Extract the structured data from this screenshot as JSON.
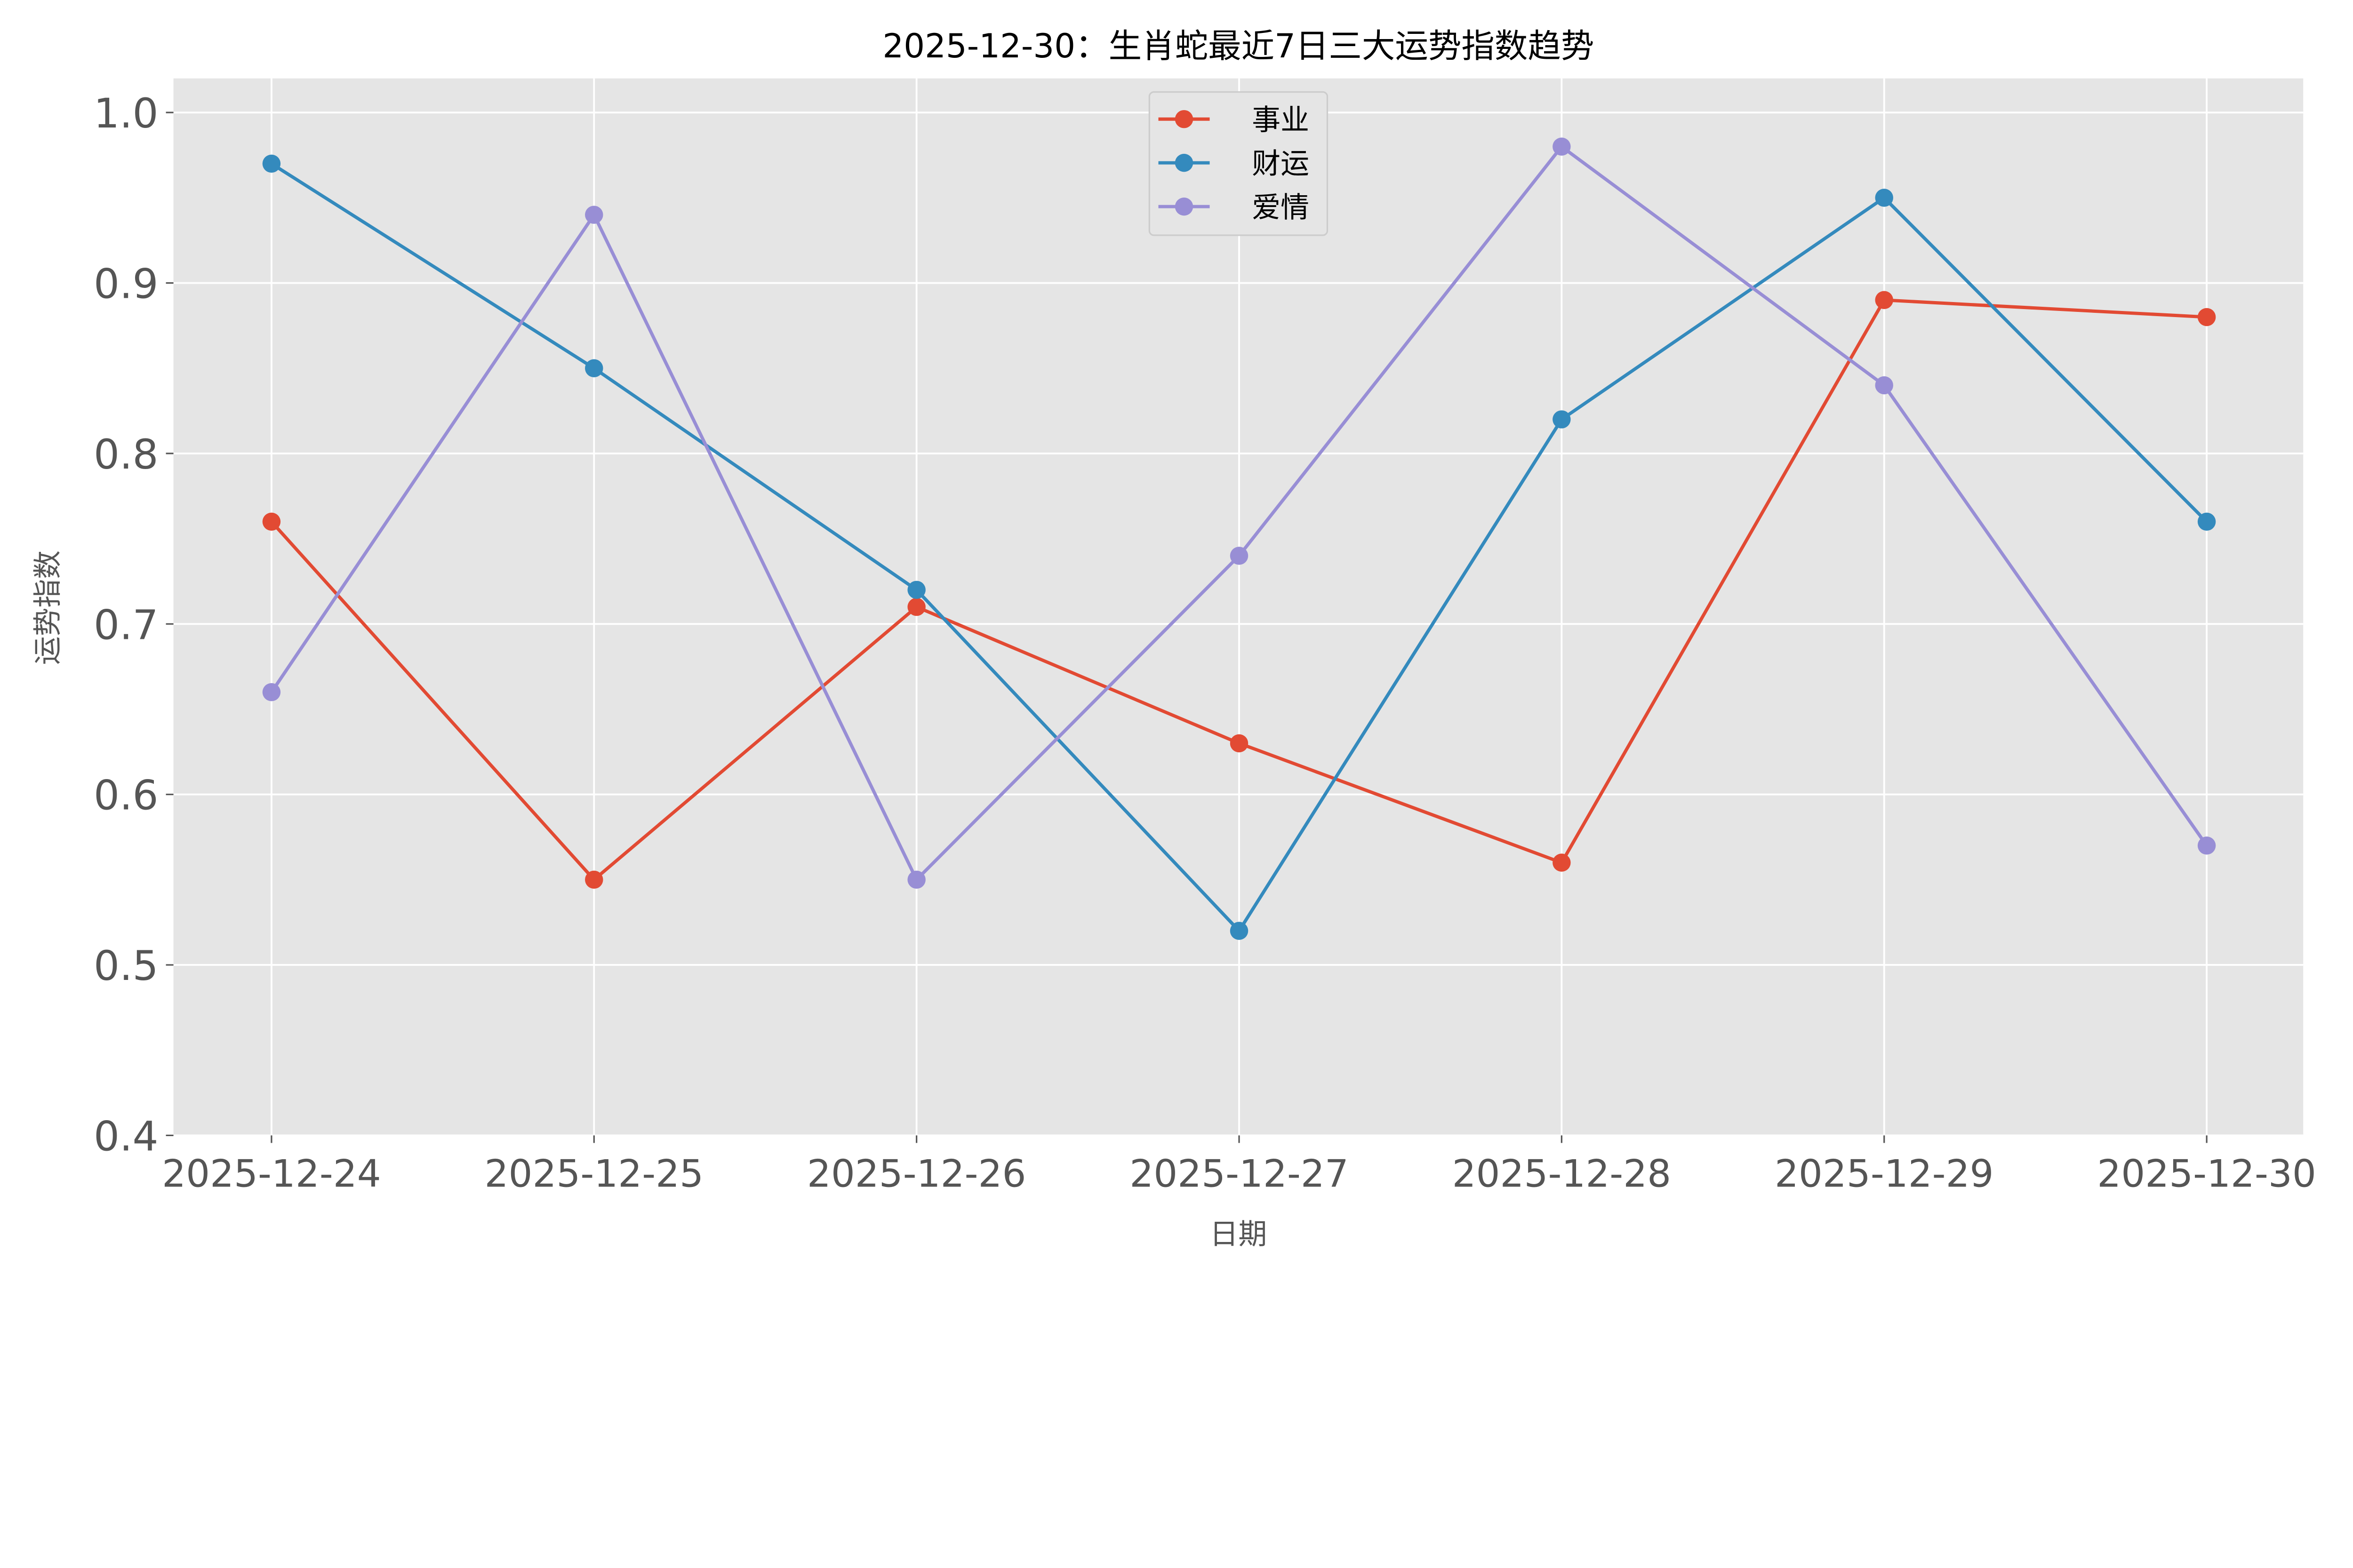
{
  "chart_data": {
    "type": "line",
    "title": "2025-12-30：生肖蛇最近7日三大运势指数趋势",
    "xlabel": "日期",
    "ylabel": "运势指数",
    "categories": [
      "2025-12-24",
      "2025-12-25",
      "2025-12-26",
      "2025-12-27",
      "2025-12-28",
      "2025-12-29",
      "2025-12-30"
    ],
    "ylim": [
      0.4,
      1.02
    ],
    "yticks": [
      0.4,
      0.5,
      0.6,
      0.7,
      0.8,
      0.9,
      1.0
    ],
    "ytick_labels": [
      "0.4",
      "0.5",
      "0.6",
      "0.7",
      "0.8",
      "0.9",
      "1.0"
    ],
    "grid": true,
    "legend_position": "top-center",
    "series": [
      {
        "name": "事业",
        "color": "#E24A33",
        "values": [
          0.76,
          0.55,
          0.71,
          0.63,
          0.56,
          0.89,
          0.88
        ]
      },
      {
        "name": "财运",
        "color": "#348ABD",
        "values": [
          0.97,
          0.85,
          0.72,
          0.52,
          0.82,
          0.95,
          0.76
        ]
      },
      {
        "name": "爱情",
        "color": "#988ED5",
        "values": [
          0.66,
          0.94,
          0.55,
          0.74,
          0.98,
          0.84,
          0.57
        ]
      }
    ],
    "background_color": "#E5E5E5"
  }
}
